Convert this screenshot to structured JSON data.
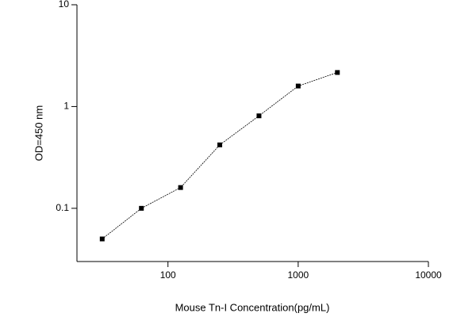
{
  "chart_data": {
    "type": "line",
    "x_label": "Mouse Tn-I  Concentration(pg/mL)",
    "y_label": "OD=450 nm",
    "x": [
      31.25,
      62.5,
      125,
      250,
      500,
      1000,
      2000
    ],
    "series": [
      {
        "color": "#000000",
        "values": [
          0.05,
          0.1,
          0.16,
          0.42,
          0.81,
          1.59,
          2.16
        ]
      }
    ],
    "xlim": [
      20,
      10000
    ],
    "xticks": [
      100,
      1000,
      10000
    ],
    "ylim": [
      0.03,
      10
    ],
    "yticks": [
      0.1,
      1,
      10
    ],
    "xscale": "log",
    "yscale": "log",
    "grid": false
  }
}
